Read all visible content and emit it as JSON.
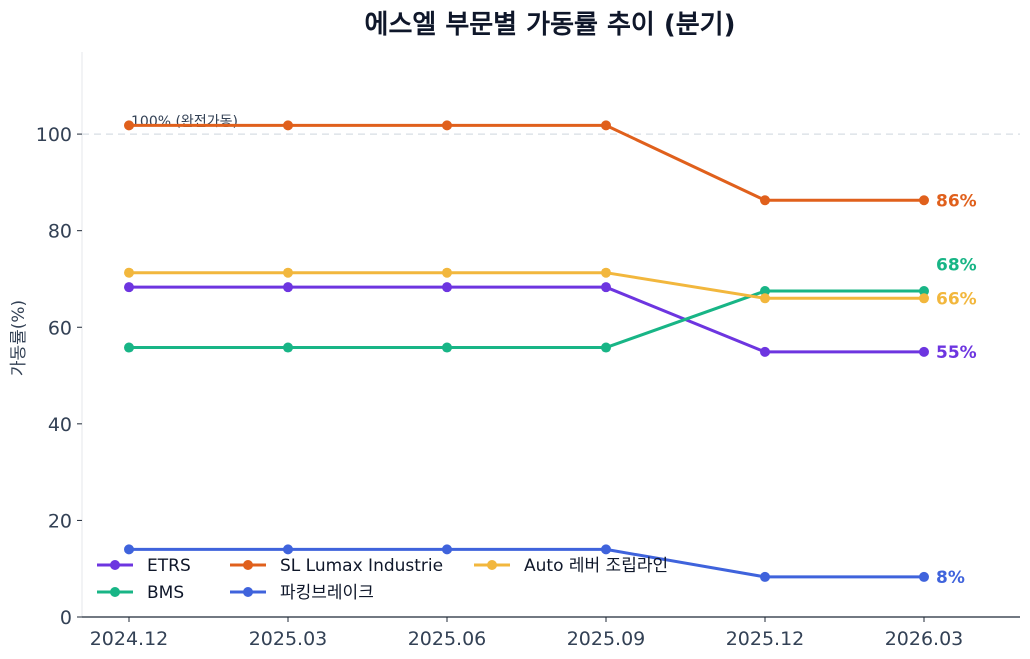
{
  "chart_data": {
    "type": "line",
    "title": "에스엘 부문별 가동률 추이 (분기)",
    "xlabel": "",
    "ylabel": "가동률(%)",
    "categories": [
      "2024.12",
      "2025.03",
      "2025.06",
      "2025.09",
      "2025.12",
      "2026.03"
    ],
    "ylim": [
      0,
      117
    ],
    "yticks": [
      0,
      20,
      40,
      60,
      80,
      100
    ],
    "grid": false,
    "legend_position": "bottom-left",
    "reference_line": {
      "value": 100,
      "label": "100% (완전가동)"
    },
    "series": [
      {
        "name": "ETRS",
        "color": "#6d35e0",
        "values": [
          68.3,
          68.3,
          68.3,
          68.3,
          54.9,
          54.9
        ],
        "end_label": "55%"
      },
      {
        "name": "BMS",
        "color": "#18b586",
        "values": [
          55.8,
          55.8,
          55.8,
          55.8,
          67.5,
          67.5
        ],
        "end_label": "68%"
      },
      {
        "name": "SL Lumax Industrie",
        "color": "#e0601c",
        "values": [
          101.8,
          101.8,
          101.8,
          101.8,
          86.3,
          86.3
        ],
        "end_label": "86%"
      },
      {
        "name": "파킹브레이크",
        "color": "#3f63dc",
        "values": [
          14.0,
          14.0,
          14.0,
          14.0,
          8.3,
          8.3
        ],
        "end_label": "8%"
      },
      {
        "name": "Auto 레버 조립라인",
        "color": "#f2b73d",
        "values": [
          71.3,
          71.3,
          71.3,
          71.3,
          66.0,
          66.0
        ],
        "end_label": "66%"
      }
    ]
  }
}
